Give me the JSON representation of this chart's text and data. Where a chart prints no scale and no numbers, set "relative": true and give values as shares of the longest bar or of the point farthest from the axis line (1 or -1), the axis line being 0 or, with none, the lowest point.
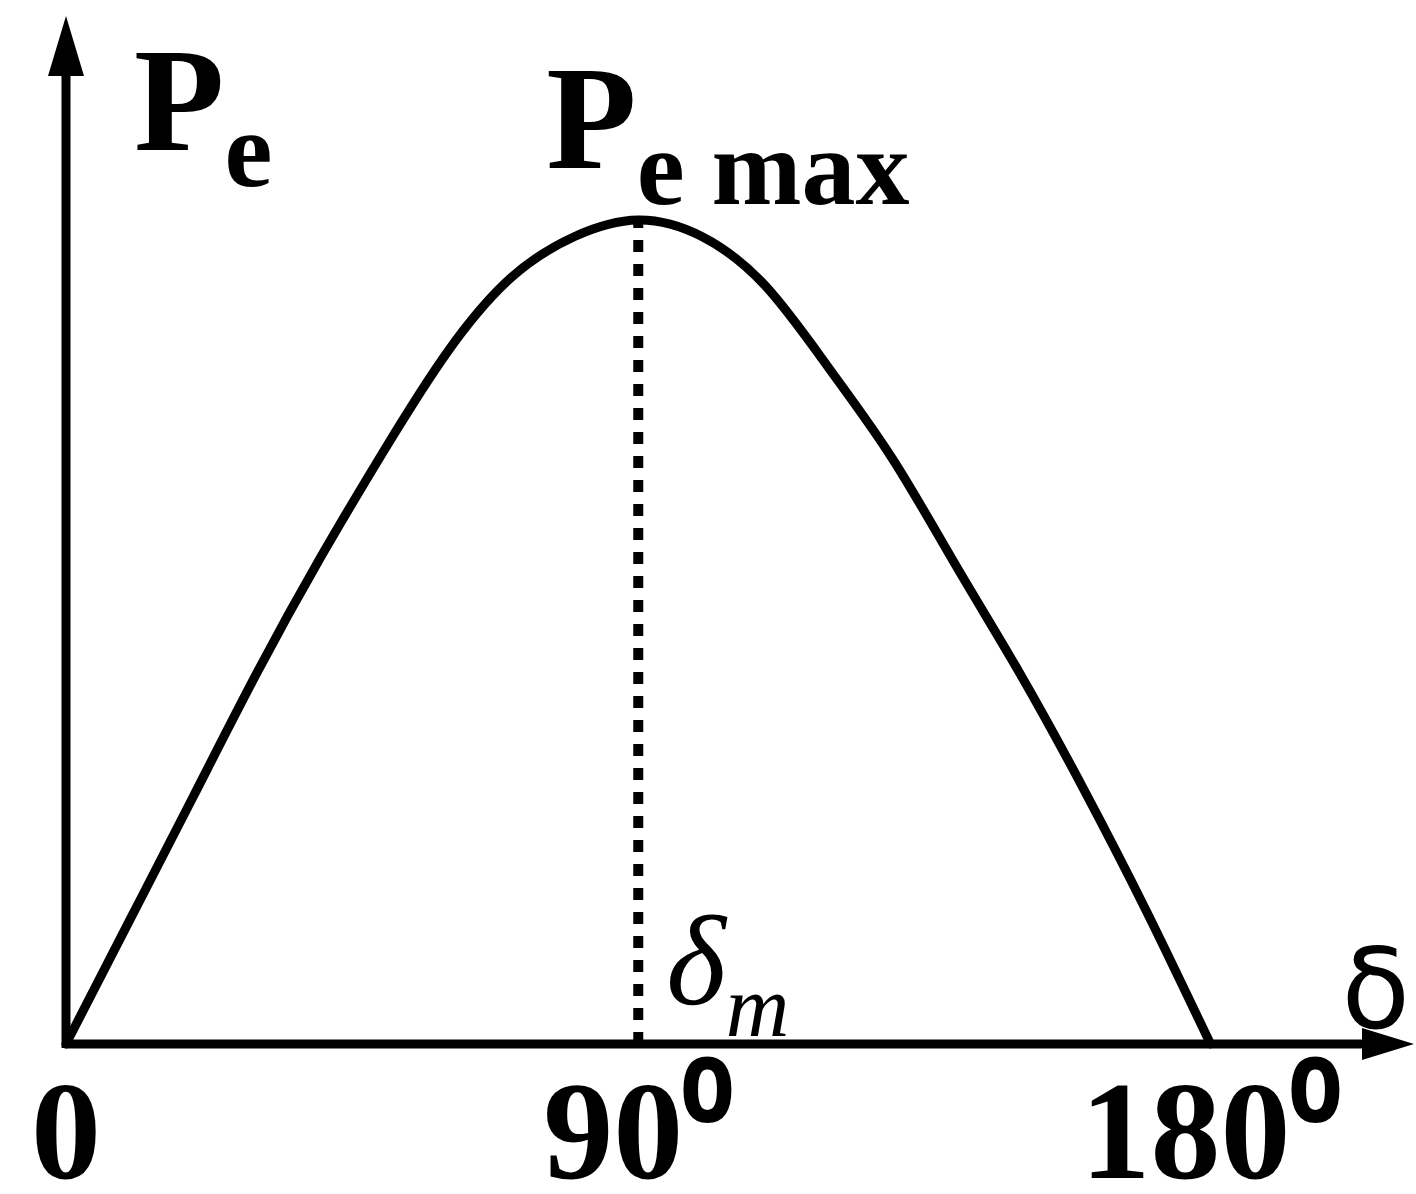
{
  "chart_data": {
    "type": "line",
    "xlabel": "δ",
    "ylabel": "P$_{e}$",
    "x": [
      0,
      10,
      20,
      30,
      40,
      50,
      60,
      70,
      80,
      90,
      100,
      110,
      120,
      130,
      140,
      150,
      160,
      170,
      180
    ],
    "values": [
      0,
      0.15,
      0.3,
      0.45,
      0.59,
      0.72,
      0.84,
      0.93,
      0.98,
      1,
      0.98,
      0.92,
      0.82,
      0.71,
      0.58,
      0.45,
      0.31,
      0.16,
      0
    ],
    "color": "#000000",
    "relative": true,
    "xlim": [
      0,
      212
    ],
    "xticks": [
      0,
      {
        "value": 90,
        "label": "90⁰"
      },
      {
        "value": 180,
        "label": "180⁰"
      }
    ],
    "ref_lines": [
      {
        "axis": "x",
        "value": 90,
        "label": "δ$_{m}$",
        "line_style": "dotted",
        "color": "#000000"
      }
    ],
    "annotations": [
      {
        "text": "P$_{e max}$",
        "x": 90,
        "y": 1
      }
    ]
  }
}
